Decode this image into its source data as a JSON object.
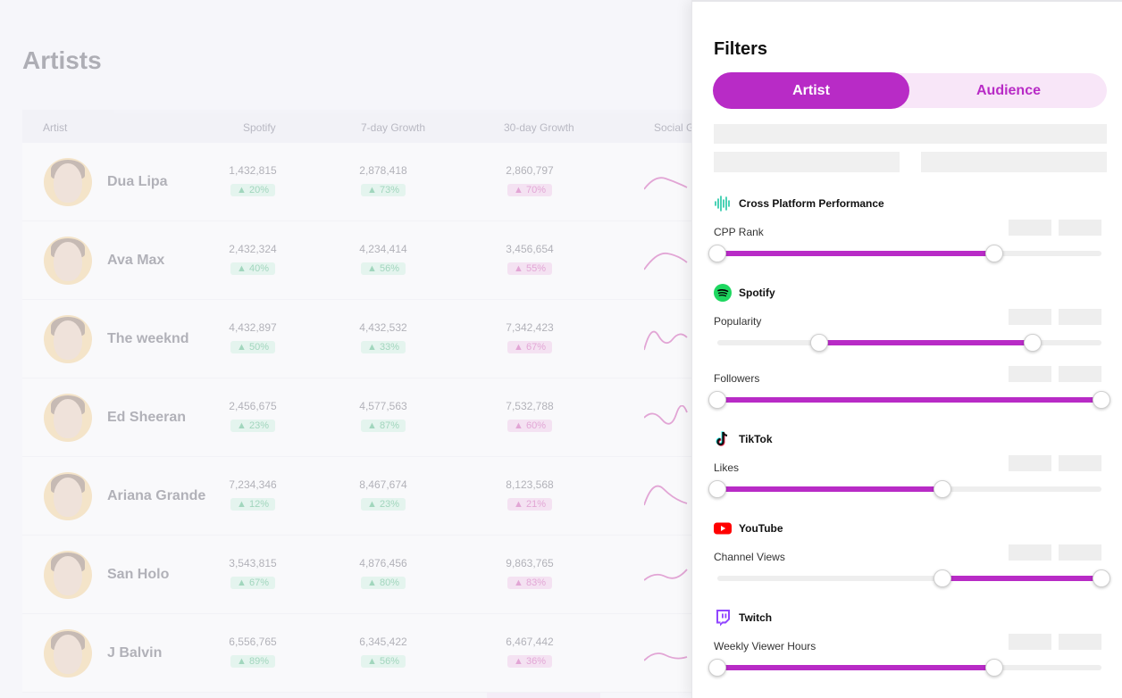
{
  "page": {
    "title": "Artists"
  },
  "table": {
    "columns": [
      "Artist",
      "Spotify",
      "7-day Growth",
      "30-day Growth",
      "Social G"
    ],
    "rows": [
      {
        "name": "Dua Lipa",
        "spotify": "1,432,815",
        "spotify_change": "20%",
        "growth7": "2,878,418",
        "growth7_change": "73%",
        "growth30": "2,860,797",
        "growth30_change": "70%"
      },
      {
        "name": "Ava Max",
        "spotify": "2,432,324",
        "spotify_change": "40%",
        "growth7": "4,234,414",
        "growth7_change": "56%",
        "growth30": "3,456,654",
        "growth30_change": "55%"
      },
      {
        "name": "The weeknd",
        "spotify": "4,432,897",
        "spotify_change": "50%",
        "growth7": "4,432,532",
        "growth7_change": "33%",
        "growth30": "7,342,423",
        "growth30_change": "67%"
      },
      {
        "name": "Ed Sheeran",
        "spotify": "2,456,675",
        "spotify_change": "23%",
        "growth7": "4,577,563",
        "growth7_change": "87%",
        "growth30": "7,532,788",
        "growth30_change": "60%"
      },
      {
        "name": "Ariana Grande",
        "spotify": "7,234,346",
        "spotify_change": "12%",
        "growth7": "8,467,674",
        "growth7_change": "23%",
        "growth30": "8,123,568",
        "growth30_change": "21%"
      },
      {
        "name": "San Holo",
        "spotify": "3,543,815",
        "spotify_change": "67%",
        "growth7": "4,876,456",
        "growth7_change": "80%",
        "growth30": "9,863,765",
        "growth30_change": "83%"
      },
      {
        "name": "J Balvin",
        "spotify": "6,556,765",
        "spotify_change": "89%",
        "growth7": "6,345,422",
        "growth7_change": "56%",
        "growth30": "6,467,442",
        "growth30_change": "36%"
      }
    ]
  },
  "filters": {
    "title": "Filters",
    "tabs": {
      "artist": "Artist",
      "audience": "Audience",
      "active": "Artist"
    },
    "cpp": {
      "section": "Cross Platform Performance",
      "icon": "waveform-icon",
      "rank": {
        "label": "CPP Rank",
        "low": 0.0,
        "high": 0.72
      }
    },
    "spotify": {
      "section": "Spotify",
      "icon": "spotify-icon",
      "color": "#1ed760",
      "popularity": {
        "label": "Popularity",
        "low": 0.265,
        "high": 0.82
      },
      "followers": {
        "label": "Followers",
        "low": 0.0,
        "high": 1.0
      }
    },
    "tiktok": {
      "section": "TikTok",
      "icon": "tiktok-icon",
      "likes": {
        "label": "Likes",
        "low": 0.0,
        "high": 0.585
      }
    },
    "youtube": {
      "section": "YouTube",
      "icon": "youtube-icon",
      "color": "#ff0000",
      "channel_views": {
        "label": "Channel Views",
        "low": 0.585,
        "high": 1.0
      }
    },
    "twitch": {
      "section": "Twitch",
      "icon": "twitch-icon",
      "color": "#9146ff",
      "weekly_viewer_hours": {
        "label": "Weekly Viewer Hours",
        "low": 0.0,
        "high": 0.72
      }
    }
  },
  "colors": {
    "accent": "#b82bc6",
    "accent_light": "#f8e6f8",
    "positive": "#1aa35c"
  }
}
